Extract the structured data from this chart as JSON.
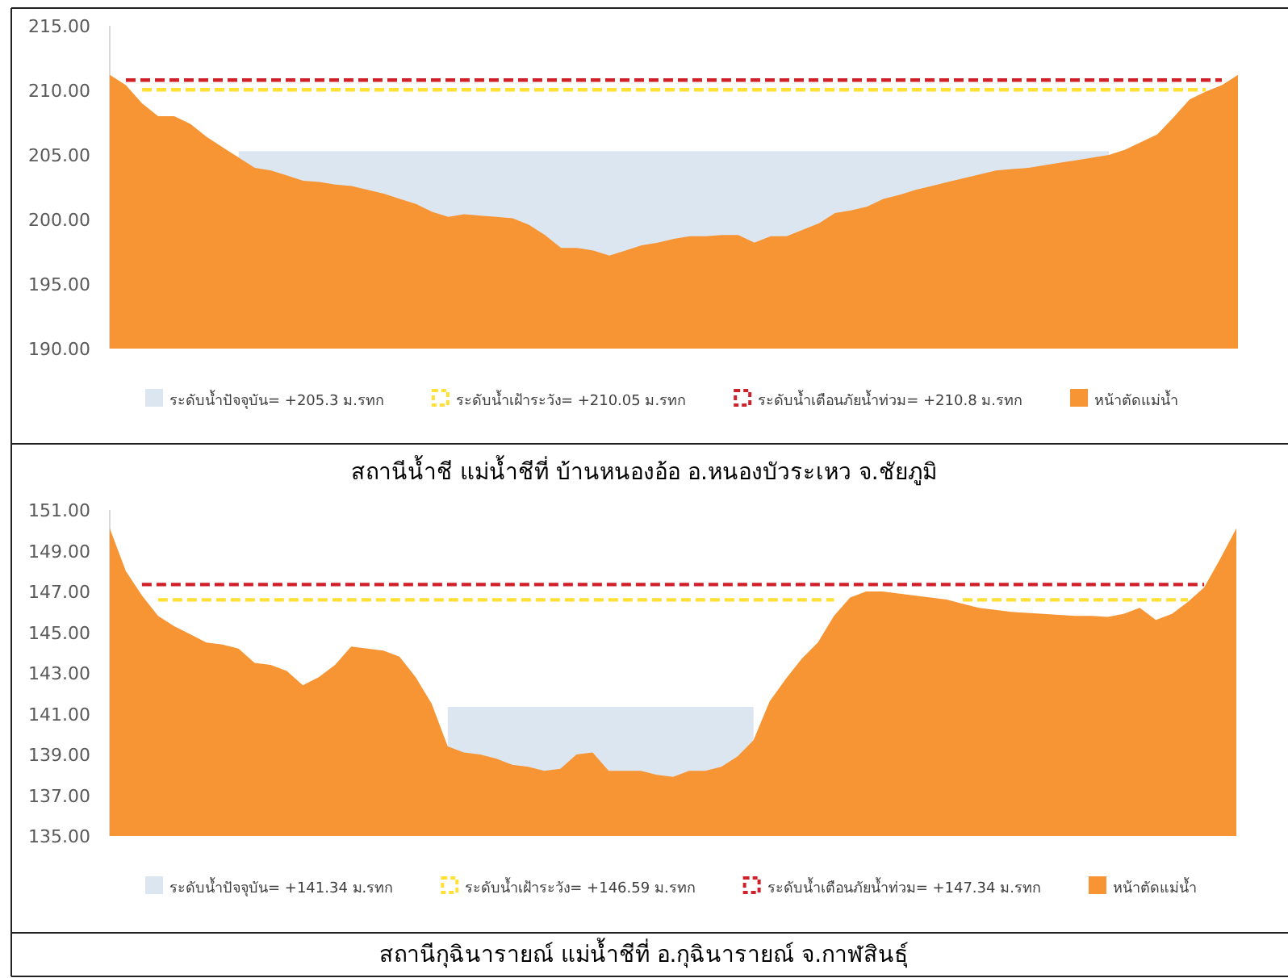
{
  "chart_data": [
    {
      "type": "area",
      "categories": [
        null,
        null,
        null,
        null,
        null,
        null,
        null,
        null,
        null,
        null,
        null,
        null,
        null,
        null,
        null,
        null,
        null,
        null,
        null,
        null,
        null,
        null,
        null,
        null,
        null,
        null,
        null,
        null,
        null,
        null,
        null,
        null,
        null,
        null,
        null,
        null,
        null,
        null,
        null,
        null,
        null,
        null,
        null,
        null,
        null,
        null,
        null,
        null,
        null,
        null,
        null,
        null,
        null,
        null,
        null,
        null,
        null,
        null,
        null,
        null,
        null,
        null,
        null,
        null,
        null,
        null,
        null,
        null,
        null,
        null,
        null
      ],
      "ylim": [
        190,
        215
      ],
      "yticks": [
        {
          "value": 190,
          "label": "190.00"
        },
        {
          "value": 195,
          "label": "195.00"
        },
        {
          "value": 200,
          "label": "200.00"
        },
        {
          "value": 205,
          "label": "205.00"
        },
        {
          "value": 210,
          "label": "210.00"
        },
        {
          "value": 215,
          "label": "215.00"
        }
      ],
      "tick_labels": "y",
      "legend": "bottom",
      "grid": false,
      "annotations": [
        "สถานีน้ำชี แม่น้ำชีที่ บ้านหนองอ้อ อ.หนองบัวระเหว จ.ชัยภูมิ"
      ],
      "series": [
        {
          "name": "ระดับน้ำปัจจุบัน= +205.3 ม.รทก",
          "color": "#dce6f0",
          "values": [
            null,
            null,
            null,
            null,
            null,
            null,
            null,
            null,
            205.3,
            205.3,
            205.3,
            205.3,
            205.3,
            205.3,
            205.3,
            205.3,
            205.3,
            205.3,
            205.3,
            205.3,
            205.3,
            205.3,
            205.3,
            205.3,
            205.3,
            205.3,
            205.3,
            205.3,
            205.3,
            205.3,
            205.3,
            205.3,
            205.3,
            205.3,
            205.3,
            205.3,
            205.3,
            205.3,
            205.3,
            205.3,
            205.3,
            205.3,
            205.3,
            205.3,
            205.3,
            205.3,
            205.3,
            205.3,
            205.3,
            205.3,
            205.3,
            205.3,
            205.3,
            205.3,
            205.3,
            205.3,
            205.3,
            205.3,
            205.3,
            205.3,
            205.3,
            205.3,
            205.3,
            null,
            null,
            null,
            null,
            null,
            null,
            null,
            null
          ]
        },
        {
          "name": "ระดับน้ำเฝ้าระวัง= +210.05 ม.รทก",
          "type": "line",
          "line_style": "dashed",
          "color": "#ffe033",
          "values": [
            null,
            null,
            210.05,
            210.05,
            210.05,
            210.05,
            210.05,
            210.05,
            210.05,
            210.05,
            210.05,
            210.05,
            210.05,
            210.05,
            210.05,
            210.05,
            210.05,
            210.05,
            210.05,
            210.05,
            210.05,
            210.05,
            210.05,
            210.05,
            210.05,
            210.05,
            210.05,
            210.05,
            210.05,
            210.05,
            210.05,
            210.05,
            210.05,
            210.05,
            210.05,
            210.05,
            210.05,
            210.05,
            210.05,
            210.05,
            210.05,
            210.05,
            210.05,
            210.05,
            210.05,
            210.05,
            210.05,
            210.05,
            210.05,
            210.05,
            210.05,
            210.05,
            210.05,
            210.05,
            210.05,
            210.05,
            210.05,
            210.05,
            210.05,
            210.05,
            210.05,
            210.05,
            210.05,
            210.05,
            210.05,
            210.05,
            210.05,
            210.05,
            210.05,
            null,
            null
          ]
        },
        {
          "name": "ระดับน้ำเตือนภัยน้ำท่วม= +210.8 ม.รทก",
          "type": "line",
          "line_style": "dashed",
          "color": "#d0202a",
          "values": [
            null,
            210.8,
            210.8,
            210.8,
            210.8,
            210.8,
            210.8,
            210.8,
            210.8,
            210.8,
            210.8,
            210.8,
            210.8,
            210.8,
            210.8,
            210.8,
            210.8,
            210.8,
            210.8,
            210.8,
            210.8,
            210.8,
            210.8,
            210.8,
            210.8,
            210.8,
            210.8,
            210.8,
            210.8,
            210.8,
            210.8,
            210.8,
            210.8,
            210.8,
            210.8,
            210.8,
            210.8,
            210.8,
            210.8,
            210.8,
            210.8,
            210.8,
            210.8,
            210.8,
            210.8,
            210.8,
            210.8,
            210.8,
            210.8,
            210.8,
            210.8,
            210.8,
            210.8,
            210.8,
            210.8,
            210.8,
            210.8,
            210.8,
            210.8,
            210.8,
            210.8,
            210.8,
            210.8,
            210.8,
            210.8,
            210.8,
            210.8,
            210.8,
            210.8,
            210.8,
            null
          ]
        },
        {
          "name": "หน้าตัดแม่น้ำ",
          "color": "#f79433",
          "values": [
            211.2,
            210.4,
            209.0,
            208.0,
            208.0,
            207.4,
            206.4,
            205.6,
            204.8,
            204.0,
            203.8,
            203.4,
            203.0,
            202.9,
            202.7,
            202.6,
            202.3,
            202.0,
            201.6,
            201.2,
            200.6,
            200.2,
            200.4,
            200.3,
            200.2,
            200.1,
            199.6,
            198.8,
            197.8,
            197.8,
            197.6,
            197.2,
            197.6,
            198.0,
            198.2,
            198.5,
            198.7,
            198.7,
            198.8,
            198.8,
            198.2,
            198.7,
            198.7,
            199.2,
            199.7,
            200.5,
            200.7,
            201.0,
            201.6,
            201.9,
            202.3,
            202.6,
            202.9,
            203.2,
            203.5,
            203.8,
            203.9,
            204.0,
            204.2,
            204.4,
            204.6,
            204.8,
            205.0,
            205.4,
            206.0,
            206.6,
            207.9,
            209.3,
            209.9,
            210.4,
            211.2
          ]
        }
      ]
    },
    {
      "type": "area",
      "categories": [
        null,
        null,
        null,
        null,
        null,
        null,
        null,
        null,
        null,
        null,
        null,
        null,
        null,
        null,
        null,
        null,
        null,
        null,
        null,
        null,
        null,
        null,
        null,
        null,
        null,
        null,
        null,
        null,
        null,
        null,
        null,
        null,
        null,
        null,
        null,
        null,
        null,
        null,
        null,
        null,
        null,
        null,
        null,
        null,
        null,
        null,
        null,
        null,
        null,
        null,
        null,
        null,
        null,
        null,
        null,
        null,
        null,
        null,
        null,
        null,
        null,
        null,
        null,
        null,
        null,
        null,
        null,
        null,
        null,
        null,
        null
      ],
      "ylim": [
        135,
        151
      ],
      "yticks": [
        {
          "value": 135,
          "label": "135.00"
        },
        {
          "value": 137,
          "label": "137.00"
        },
        {
          "value": 139,
          "label": "139.00"
        },
        {
          "value": 141,
          "label": "141.00"
        },
        {
          "value": 143,
          "label": "143.00"
        },
        {
          "value": 145,
          "label": "145.00"
        },
        {
          "value": 147,
          "label": "147.00"
        },
        {
          "value": 149,
          "label": "149.00"
        },
        {
          "value": 151,
          "label": "151.00"
        }
      ],
      "tick_labels": "y",
      "legend": "bottom",
      "grid": false,
      "annotations": [
        "สถานีกุฉินารายณ์ แม่น้ำชีที่ อ.กุฉินารายณ์ จ.กาฬสินธุ์"
      ],
      "series": [
        {
          "name": "ระดับน้ำปัจจุบัน= +141.34 ม.รทก",
          "color": "#dce6f0",
          "values": [
            null,
            null,
            null,
            null,
            null,
            null,
            null,
            null,
            null,
            null,
            null,
            null,
            null,
            null,
            null,
            null,
            null,
            null,
            null,
            null,
            null,
            141.34,
            141.34,
            141.34,
            141.34,
            141.34,
            141.34,
            141.34,
            141.34,
            141.34,
            141.34,
            141.34,
            141.34,
            141.34,
            141.34,
            141.34,
            141.34,
            141.34,
            141.34,
            141.34,
            141.34,
            null,
            null,
            null,
            null,
            null,
            null,
            null,
            null,
            null,
            null,
            null,
            null,
            null,
            null,
            null,
            null,
            null,
            null,
            null,
            null,
            null,
            null,
            null,
            null,
            null,
            null,
            null,
            null,
            null,
            null
          ]
        },
        {
          "name": "ระดับน้ำเฝ้าระวัง= +146.59 ม.รทก",
          "type": "line",
          "line_style": "dashed",
          "color": "#ffe033",
          "values": [
            null,
            null,
            null,
            146.59,
            146.59,
            146.59,
            146.59,
            146.59,
            146.59,
            146.59,
            146.59,
            146.59,
            146.59,
            146.59,
            146.59,
            146.59,
            146.59,
            146.59,
            146.59,
            146.59,
            146.59,
            146.59,
            146.59,
            146.59,
            146.59,
            146.59,
            146.59,
            146.59,
            146.59,
            146.59,
            146.59,
            146.59,
            146.59,
            146.59,
            146.59,
            146.59,
            146.59,
            146.59,
            146.59,
            146.59,
            146.59,
            146.59,
            146.59,
            146.59,
            146.59,
            146.59,
            null,
            null,
            null,
            null,
            null,
            null,
            null,
            146.59,
            146.59,
            146.59,
            146.59,
            146.59,
            146.59,
            146.59,
            146.59,
            146.59,
            146.59,
            146.59,
            146.59,
            146.59,
            146.59,
            146.59,
            null,
            null,
            null
          ]
        },
        {
          "name": "ระดับน้ำเตือนภัยน้ำท่วม= +147.34 ม.รทก",
          "type": "line",
          "line_style": "dashed",
          "color": "#d0202a",
          "values": [
            null,
            null,
            147.34,
            147.34,
            147.34,
            147.34,
            147.34,
            147.34,
            147.34,
            147.34,
            147.34,
            147.34,
            147.34,
            147.34,
            147.34,
            147.34,
            147.34,
            147.34,
            147.34,
            147.34,
            147.34,
            147.34,
            147.34,
            147.34,
            147.34,
            147.34,
            147.34,
            147.34,
            147.34,
            147.34,
            147.34,
            147.34,
            147.34,
            147.34,
            147.34,
            147.34,
            147.34,
            147.34,
            147.34,
            147.34,
            147.34,
            147.34,
            147.34,
            147.34,
            147.34,
            147.34,
            147.34,
            147.34,
            147.34,
            147.34,
            147.34,
            147.34,
            147.34,
            147.34,
            147.34,
            147.34,
            147.34,
            147.34,
            147.34,
            147.34,
            147.34,
            147.34,
            147.34,
            147.34,
            147.34,
            147.34,
            147.34,
            147.34,
            147.34,
            null,
            null
          ]
        },
        {
          "name": "หน้าตัดแม่น้ำ",
          "color": "#f79433",
          "values": [
            150.1,
            148.0,
            146.8,
            145.8,
            145.3,
            144.9,
            144.5,
            144.4,
            144.2,
            143.5,
            143.4,
            143.1,
            142.4,
            142.8,
            143.4,
            144.3,
            144.2,
            144.1,
            143.8,
            142.8,
            141.5,
            139.4,
            139.1,
            139.0,
            138.8,
            138.5,
            138.4,
            138.2,
            138.3,
            139.0,
            139.1,
            138.2,
            138.2,
            138.2,
            138.0,
            137.9,
            138.2,
            138.2,
            138.4,
            138.9,
            139.7,
            141.6,
            142.7,
            143.7,
            144.5,
            145.8,
            146.7,
            147.0,
            147.0,
            146.9,
            146.8,
            146.7,
            146.6,
            146.4,
            146.2,
            146.1,
            146.0,
            145.95,
            145.9,
            145.85,
            145.8,
            145.8,
            145.75,
            145.9,
            146.2,
            145.6,
            145.9,
            146.5,
            147.2,
            148.6,
            150.1
          ]
        }
      ]
    }
  ]
}
